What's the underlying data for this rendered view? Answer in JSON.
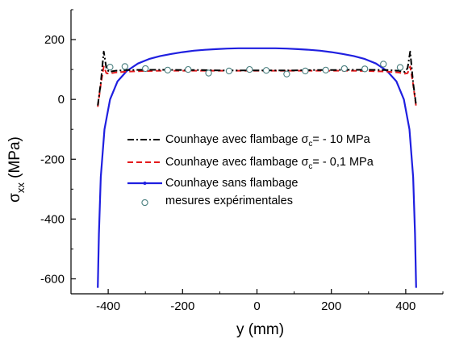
{
  "chart_data": {
    "type": "line",
    "xlabel": "y (mm)",
    "ylabel_main": "σ",
    "ylabel_sub": "xx",
    "ylabel_unit": " (MPa)",
    "xlim": [
      -500,
      500
    ],
    "ylim": [
      -650,
      300
    ],
    "x_ticks": [
      -400,
      -200,
      0,
      200,
      400
    ],
    "y_ticks": [
      200,
      0,
      -200,
      -400,
      -600
    ],
    "grid": false,
    "legend_position": "center",
    "series": [
      {
        "name": "Counhaye avec flambage σc= - 10 MPa",
        "legend_prefix": "Counhaye avec flambage σ",
        "legend_sub": "c",
        "legend_suffix": "= - 10 MPa",
        "style": "dashdot",
        "color": "#000000",
        "x": [
          -428,
          -420,
          -412,
          -405,
          -398,
          -380,
          -350,
          -300,
          -250,
          -200,
          -150,
          -100,
          -50,
          0,
          50,
          100,
          150,
          200,
          250,
          300,
          350,
          380,
          398,
          405,
          412,
          420,
          428
        ],
        "y": [
          -20,
          55,
          160,
          105,
          92,
          96,
          98,
          99,
          99,
          98,
          98,
          97,
          97,
          97,
          97,
          97,
          98,
          98,
          99,
          99,
          98,
          96,
          92,
          105,
          160,
          55,
          -20
        ]
      },
      {
        "name": "Counhaye avec flambage σc= - 0,1 MPa",
        "legend_prefix": "Counhaye avec flambage σ",
        "legend_sub": "c",
        "legend_suffix": "= - 0,1 MPa",
        "style": "dashed",
        "color": "#e41a1c",
        "x": [
          -428,
          -420,
          -412,
          -405,
          -398,
          -380,
          -350,
          -300,
          -250,
          -200,
          -150,
          -100,
          -50,
          0,
          50,
          100,
          150,
          200,
          250,
          300,
          350,
          380,
          398,
          405,
          412,
          420,
          428
        ],
        "y": [
          -25,
          50,
          110,
          88,
          86,
          90,
          93,
          95,
          96,
          96,
          96,
          96,
          96,
          96,
          96,
          96,
          96,
          96,
          96,
          95,
          93,
          90,
          86,
          88,
          110,
          50,
          -25
        ]
      },
      {
        "name": "Counhaye sans flambage",
        "legend_prefix": "Counhaye sans flambage",
        "legend_sub": "",
        "legend_suffix": "",
        "style": "solid",
        "color": "#1f1fe0",
        "x": [
          -428,
          -425,
          -420,
          -410,
          -395,
          -375,
          -350,
          -320,
          -290,
          -260,
          -230,
          -200,
          -170,
          -140,
          -110,
          -80,
          -50,
          -20,
          0,
          20,
          50,
          80,
          110,
          140,
          170,
          200,
          230,
          260,
          290,
          320,
          350,
          375,
          395,
          410,
          420,
          425,
          428
        ],
        "y": [
          -630,
          -450,
          -260,
          -100,
          0,
          60,
          95,
          120,
          135,
          145,
          152,
          158,
          163,
          166,
          168,
          170,
          171,
          171,
          171,
          171,
          171,
          170,
          168,
          166,
          163,
          158,
          152,
          145,
          135,
          120,
          95,
          60,
          0,
          -100,
          -260,
          -450,
          -630
        ]
      },
      {
        "name": "mesures expérimentales",
        "legend_prefix": "mesures expérimentales",
        "legend_sub": "",
        "legend_suffix": "",
        "style": "markers",
        "color": "#4a7f7f",
        "x": [
          -395,
          -355,
          -300,
          -240,
          -185,
          -130,
          -75,
          -20,
          25,
          80,
          130,
          185,
          235,
          290,
          340,
          385
        ],
        "y": [
          108,
          110,
          103,
          98,
          100,
          88,
          95,
          100,
          97,
          85,
          95,
          98,
          103,
          102,
          118,
          107
        ]
      }
    ]
  }
}
